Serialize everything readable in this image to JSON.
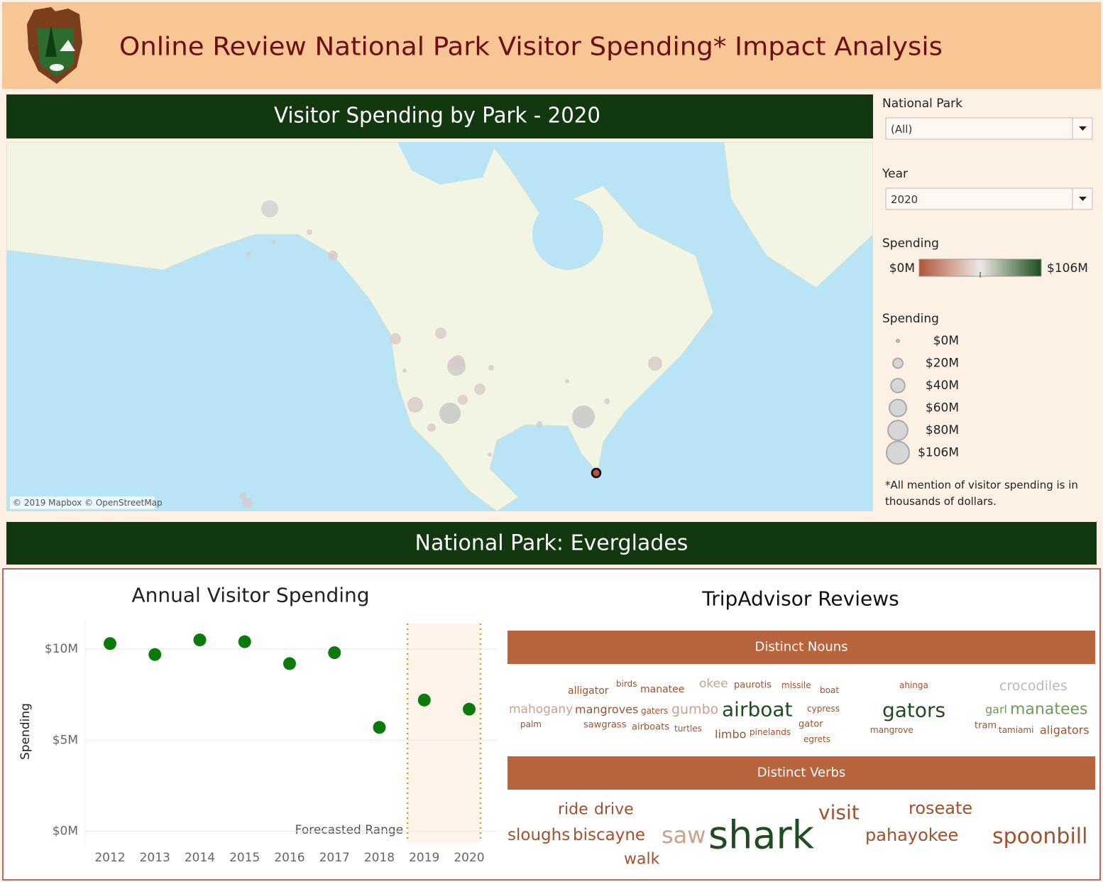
{
  "header": {
    "title": "Online Review National Park Visitor Spending* Impact Analysis"
  },
  "map": {
    "title": "Visitor Spending by Park - 2020",
    "attribution": "© 2019 Mapbox © OpenStreetMap"
  },
  "filters": [
    {
      "label": "National Park",
      "value": "(All)"
    },
    {
      "label": "Year",
      "value": "2020"
    }
  ],
  "color_legend": {
    "title": "Spending",
    "min_label": "$0M",
    "max_label": "$106M",
    "colors": [
      "#b5543a",
      "#ece9e4",
      "#1e4d1e"
    ]
  },
  "size_legend": {
    "title": "Spending",
    "items": [
      {
        "value": 0,
        "label": "$0M"
      },
      {
        "value": 20,
        "label": "$20M"
      },
      {
        "value": 40,
        "label": "$40M"
      },
      {
        "value": 60,
        "label": "$60M"
      },
      {
        "value": 80,
        "label": "$80M"
      },
      {
        "value": 106,
        "label": "$106M"
      }
    ]
  },
  "footnote": [
    "*All mention of visitor spending is in",
    "thousands of dollars."
  ],
  "park_title": "National Park: Everglades",
  "chart_data": {
    "type": "scatter",
    "title": "Annual Visitor Spending",
    "y_label": "Spending",
    "annotation": "Forecasted Range",
    "categories": [
      "2012",
      "2013",
      "2014",
      "2015",
      "2016",
      "2017",
      "2018",
      "2019",
      "2020"
    ],
    "values": [
      10.3,
      9.7,
      10.5,
      10.4,
      9.2,
      9.8,
      5.7,
      7.2,
      6.7
    ],
    "color": "#0a7a0a",
    "ylim": [
      -0.6,
      11.4
    ],
    "yticks": [
      {
        "value": 0,
        "label": "$0M"
      },
      {
        "value": 5,
        "label": "$5M"
      },
      {
        "value": 10,
        "label": "$10M"
      }
    ],
    "grid": true
  },
  "reviews": {
    "title": "TripAdvisor Reviews",
    "nouns": {
      "title": "Distinct Nouns",
      "words": [
        {
          "text": "alligator",
          "color": "#a0522d"
        },
        {
          "text": "birds",
          "color": "#a0522d"
        },
        {
          "text": "manatee",
          "color": "#a0522d"
        },
        {
          "text": "okee",
          "color": "#c9a28d"
        },
        {
          "text": "paurotis",
          "color": "#a0522d"
        },
        {
          "text": "missile",
          "color": "#a0522d"
        },
        {
          "text": "boat",
          "color": "#a0522d"
        },
        {
          "text": "ahinga",
          "color": "#a0522d"
        },
        {
          "text": "crocodiles",
          "color": "#b8b8b8"
        },
        {
          "text": "mahogany",
          "color": "#c9a28d"
        },
        {
          "text": "mangroves",
          "color": "#a0522d"
        },
        {
          "text": "gaters",
          "color": "#a0522d"
        },
        {
          "text": "gumbo",
          "color": "#c9a28d"
        },
        {
          "text": "airboat",
          "color": "#1f4d1f"
        },
        {
          "text": "cypress",
          "color": "#a0522d"
        },
        {
          "text": "gators",
          "color": "#1f4d1f"
        },
        {
          "text": "garl",
          "color": "#6e9a5a"
        },
        {
          "text": "manatees",
          "color": "#6e9a5a"
        },
        {
          "text": "palm",
          "color": "#a0522d"
        },
        {
          "text": "sawgrass",
          "color": "#a0522d"
        },
        {
          "text": "airboats",
          "color": "#a0522d"
        },
        {
          "text": "turtles",
          "color": "#a0522d"
        },
        {
          "text": "limbo",
          "color": "#a0522d"
        },
        {
          "text": "pinelands",
          "color": "#a0522d"
        },
        {
          "text": "gator",
          "color": "#a0522d"
        },
        {
          "text": "egrets",
          "color": "#a0522d"
        },
        {
          "text": "mangrove",
          "color": "#a0522d"
        },
        {
          "text": "tram",
          "color": "#a0522d"
        },
        {
          "text": "tamiami",
          "color": "#a0522d"
        },
        {
          "text": "aligators",
          "color": "#a0522d"
        }
      ]
    },
    "verbs": {
      "title": "Distinct Verbs",
      "words": [
        {
          "text": "ride",
          "color": "#a0522d"
        },
        {
          "text": "drive",
          "color": "#a0522d"
        },
        {
          "text": "visit",
          "color": "#a0522d"
        },
        {
          "text": "roseate",
          "color": "#a0522d"
        },
        {
          "text": "sloughs",
          "color": "#a0522d"
        },
        {
          "text": "biscayne",
          "color": "#a0522d"
        },
        {
          "text": "saw",
          "color": "#c9a28d"
        },
        {
          "text": "shark",
          "color": "#1f4d1f"
        },
        {
          "text": "pahayokee",
          "color": "#a0522d"
        },
        {
          "text": "spoonbill",
          "color": "#a0522d"
        },
        {
          "text": "walk",
          "color": "#a0522d"
        }
      ]
    }
  }
}
